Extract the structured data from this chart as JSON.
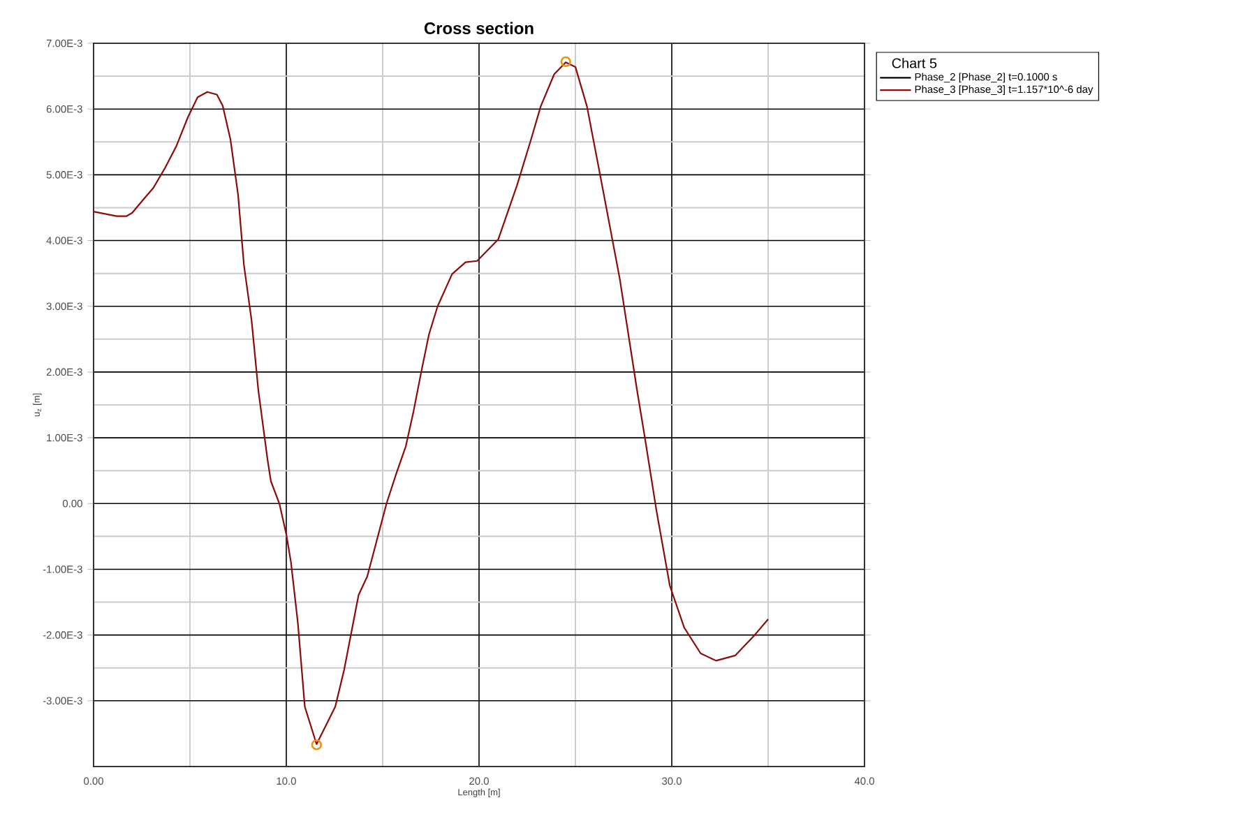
{
  "chart_data": {
    "type": "line",
    "title": "Cross section",
    "xlabel": "Length [m]",
    "ylabel": "u$_{z}$ [m]",
    "legend_title": "Chart 5",
    "xlim": [
      0,
      40
    ],
    "ylim": [
      -0.004,
      0.007
    ],
    "xticks": [
      {
        "value": 0,
        "label": "0.00"
      },
      {
        "value": 10,
        "label": "10.0"
      },
      {
        "value": 20,
        "label": "20.0"
      },
      {
        "value": 30,
        "label": "30.0"
      },
      {
        "value": 40,
        "label": "40.0"
      }
    ],
    "yticks": [
      {
        "value": -0.003,
        "label": "-3.00E-3"
      },
      {
        "value": -0.002,
        "label": "-2.00E-3"
      },
      {
        "value": -0.001,
        "label": "-1.00E-3"
      },
      {
        "value": 0,
        "label": "0.00"
      },
      {
        "value": 0.001,
        "label": "1.00E-3"
      },
      {
        "value": 0.002,
        "label": "2.00E-3"
      },
      {
        "value": 0.003,
        "label": "3.00E-3"
      },
      {
        "value": 0.004,
        "label": "4.00E-3"
      },
      {
        "value": 0.005,
        "label": "5.00E-3"
      },
      {
        "value": 0.006,
        "label": "6.00E-3"
      },
      {
        "value": 0.007,
        "label": "7.00E-3"
      }
    ],
    "grid": true,
    "legend": "top right",
    "line_style": "solid",
    "marker": "none",
    "series": [
      {
        "name": "Phase_2 [Phase_2] t=0.1000 s",
        "color": "#000000"
      },
      {
        "name": "Phase_3 [Phase_3] t=1.157*10^-6 day",
        "color": "#8b0a0a",
        "x": [
          0,
          1.2,
          1.7,
          2.0,
          2.6,
          3.1,
          3.7,
          4.3,
          4.9,
          5.4,
          5.9,
          6.4,
          6.7,
          7.1,
          7.5,
          7.8,
          8.2,
          8.55,
          9.03,
          9.2,
          9.64,
          10.0,
          10.24,
          10.6,
          10.96,
          11.57,
          12.54,
          13.0,
          13.75,
          14.2,
          15.2,
          15.7,
          16.2,
          16.6,
          17.0,
          17.4,
          17.85,
          18.6,
          19.3,
          19.9,
          21.0,
          21.96,
          22.7,
          23.2,
          23.9,
          24.5,
          25.0,
          25.6,
          26.3,
          27.3,
          28.2,
          28.6,
          29.2,
          29.9,
          30.65,
          31.5,
          32.3,
          33.3,
          34.3,
          35.0
        ],
        "values": [
          0.00444,
          0.00437,
          0.00437,
          0.00442,
          0.00463,
          0.0048,
          0.0051,
          0.00544,
          0.00588,
          0.00618,
          0.00626,
          0.00622,
          0.00605,
          0.00554,
          0.00469,
          0.00363,
          0.00278,
          0.00172,
          0.00066,
          0.00034,
          0,
          -0.00047,
          -0.00089,
          -0.00182,
          -0.00309,
          -0.00366,
          -0.00309,
          -0.00253,
          -0.00139,
          -0.00111,
          0,
          0.00045,
          0.00087,
          0.0014,
          0.002,
          0.00257,
          0.003,
          0.00349,
          0.00367,
          0.00369,
          0.00402,
          0.00483,
          0.00554,
          0.00604,
          0.00653,
          0.00671,
          0.00664,
          0.00604,
          0.00497,
          0.00342,
          0.00172,
          0.00101,
          -0.0001,
          -0.00125,
          -0.00189,
          -0.00228,
          -0.00239,
          -0.00231,
          -0.002,
          -0.00176
        ]
      },
      {
        "type": "scatter",
        "marker": "circle",
        "color": "#f0900a",
        "x": [
          11.57,
          24.5
        ],
        "values": [
          -0.00367,
          0.00672
        ]
      }
    ]
  }
}
